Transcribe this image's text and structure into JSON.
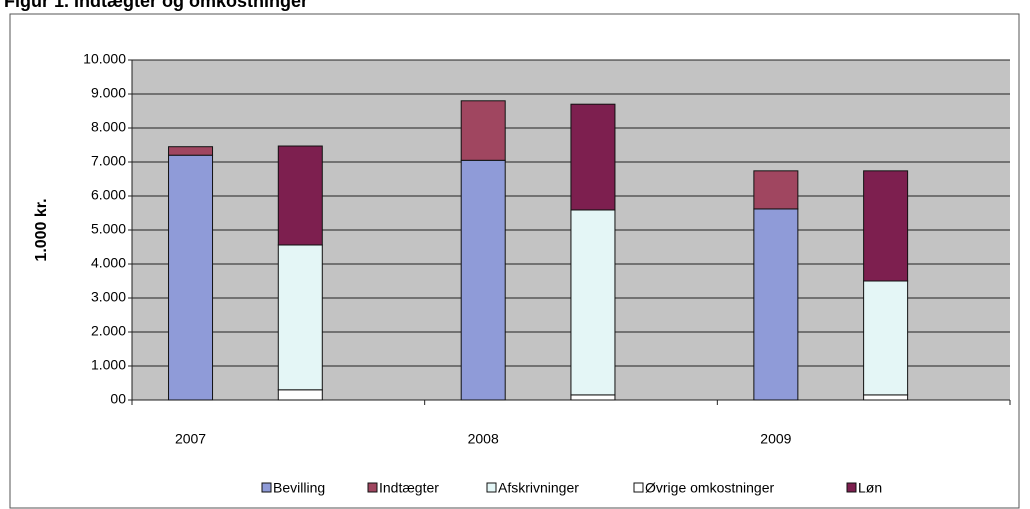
{
  "chart_data": {
    "type": "stacked-bar",
    "title": "Figur 1. Indtægter og omkostninger",
    "y_label": "1.000 kr.",
    "categories": [
      "2007",
      null,
      "2008",
      null,
      "2009",
      null
    ],
    "series": [
      {
        "name": "Bevilling",
        "color": "#8f9bd8",
        "values": [
          7200,
          null,
          7050,
          null,
          5620,
          null
        ]
      },
      {
        "name": "Indtægter",
        "color": "#a04660",
        "values": [
          250,
          null,
          1750,
          null,
          1120,
          null
        ]
      },
      {
        "name": "Afskrivninger",
        "color": "#e4f6f6",
        "values": [
          null,
          4260,
          null,
          5440,
          null,
          3350
        ]
      },
      {
        "name": "Øvrige omkostninger",
        "color": "#ffffff",
        "values": [
          null,
          300,
          null,
          150,
          null,
          150
        ]
      },
      {
        "name": "Løn",
        "color": "#7d1f4f",
        "values": [
          null,
          2910,
          null,
          3110,
          null,
          3240
        ]
      }
    ],
    "ylim": [
      0,
      10000
    ],
    "yticks": [
      {
        "value": 0,
        "label": "00"
      },
      {
        "value": 1000,
        "label": "1.000"
      },
      {
        "value": 2000,
        "label": "2.000"
      },
      {
        "value": 3000,
        "label": "3.000"
      },
      {
        "value": 4000,
        "label": "4.000"
      },
      {
        "value": 5000,
        "label": "5.000"
      },
      {
        "value": 6000,
        "label": "6.000"
      },
      {
        "value": 7000,
        "label": "7.000"
      },
      {
        "value": 8000,
        "label": "8.000"
      },
      {
        "value": 9000,
        "label": "9.000"
      },
      {
        "value": 10000,
        "label": "10.000"
      }
    ],
    "grid": true,
    "legend": "bottom"
  }
}
